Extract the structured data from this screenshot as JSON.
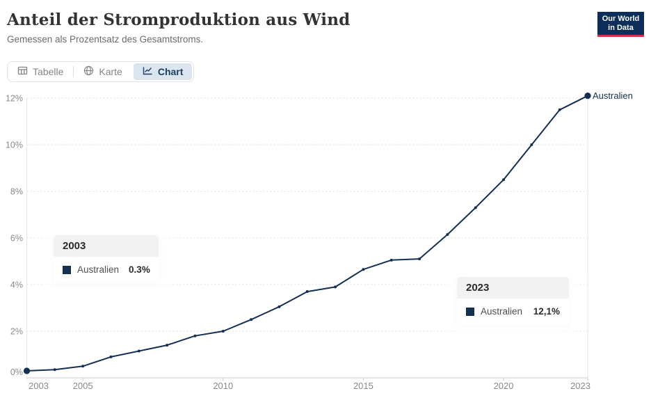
{
  "header": {
    "title": "Anteil der Stromproduktion aus Wind",
    "subtitle": "Gemessen als Prozentsatz des Gesamtstroms.",
    "logo": {
      "line1": "Our World",
      "line2": "in Data"
    }
  },
  "tabs": [
    {
      "label": "Tabelle",
      "icon": "table-icon",
      "active": false
    },
    {
      "label": "Karte",
      "icon": "globe-icon",
      "active": false
    },
    {
      "label": "Chart",
      "icon": "line-chart-icon",
      "active": true
    }
  ],
  "tooltips": [
    {
      "year": "2003",
      "entity": "Australien",
      "value": "0.3%"
    },
    {
      "year": "2023",
      "entity": "Australien",
      "value": "12,1%"
    }
  ],
  "chart_data": {
    "type": "line",
    "title": "Anteil der Stromproduktion aus Wind",
    "subtitle": "Gemessen als Prozentsatz des Gesamtstroms.",
    "x": [
      2003,
      2004,
      2005,
      2006,
      2007,
      2008,
      2009,
      2010,
      2011,
      2012,
      2013,
      2014,
      2015,
      2016,
      2017,
      2018,
      2019,
      2020,
      2021,
      2022,
      2023
    ],
    "series": [
      {
        "name": "Australien",
        "values": [
          0.3,
          0.35,
          0.5,
          0.9,
          1.15,
          1.4,
          1.8,
          2.0,
          2.5,
          3.05,
          3.7,
          3.9,
          4.65,
          5.05,
          5.1,
          6.15,
          7.3,
          8.5,
          10.0,
          11.5,
          12.1
        ]
      }
    ],
    "xlabel": "",
    "ylabel": "",
    "ylim": [
      0,
      12.4
    ],
    "y_ticks": [
      0,
      2,
      4,
      6,
      8,
      10,
      12
    ],
    "y_tick_labels": [
      "0%",
      "2%",
      "4%",
      "6%",
      "8%",
      "10%",
      "12%"
    ],
    "x_tick_years": [
      2003,
      2005,
      2010,
      2015,
      2020,
      2023
    ],
    "x_tick_labels": [
      "2003",
      "2005",
      "2010",
      "2015",
      "2020",
      "2023"
    ],
    "grid": "horizontal-dashed",
    "legend_position": "end-of-line-label",
    "end_label": "Australien",
    "highlight_years": [
      2003,
      2023
    ]
  },
  "colors": {
    "series": "#142f52",
    "active_tab_bg": "#dbe5f0",
    "active_tab_text": "#1d3d63",
    "logo_bg": "#0d2e5b",
    "logo_red": "#dc2c3e",
    "grid": "#dcdcdc",
    "axis": "#cbcbcb",
    "axis_label": "#8a8a8a",
    "hover_line": "#e4e4e4"
  }
}
